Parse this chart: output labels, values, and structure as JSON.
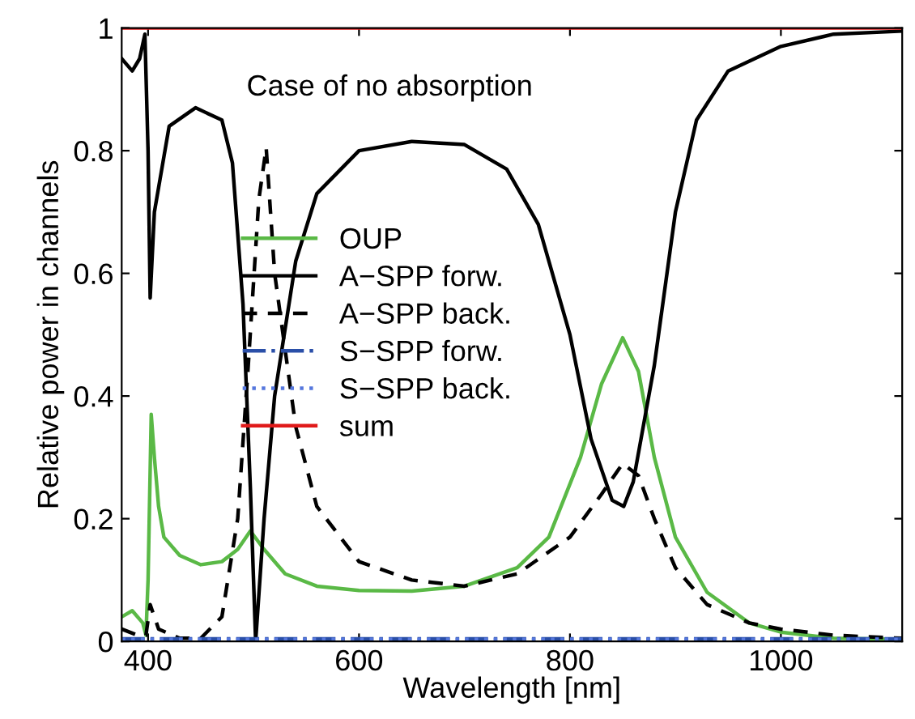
{
  "chart_data": {
    "type": "line",
    "xlabel": "Wavelength [nm]",
    "ylabel": "Relative power in channels",
    "annotations": [
      "Case of no absorption"
    ],
    "xlim": [
      375,
      1115
    ],
    "ylim": [
      0,
      1
    ],
    "xticks": [
      400,
      600,
      800,
      1000
    ],
    "yticks": [
      0,
      0.2,
      0.4,
      0.6,
      0.8,
      1
    ],
    "grid": false,
    "legend": "left",
    "marker": "none",
    "series": [
      {
        "name": "OUP",
        "color": "#5ab946",
        "line_style": "solid",
        "x": [
          375,
          385,
          395,
          398,
          400,
          403,
          406,
          410,
          415,
          430,
          450,
          470,
          485,
          497,
          510,
          530,
          560,
          600,
          650,
          700,
          750,
          780,
          810,
          830,
          850,
          865,
          880,
          900,
          930,
          970,
          1000,
          1050,
          1115
        ],
        "values": [
          0.04,
          0.05,
          0.03,
          0.01,
          0.1,
          0.37,
          0.3,
          0.22,
          0.17,
          0.14,
          0.125,
          0.13,
          0.15,
          0.18,
          0.15,
          0.11,
          0.09,
          0.083,
          0.082,
          0.09,
          0.12,
          0.17,
          0.3,
          0.42,
          0.495,
          0.44,
          0.3,
          0.17,
          0.08,
          0.03,
          0.015,
          0.005,
          0.003
        ]
      },
      {
        "name": "A−SPP forw.",
        "color": "#000000",
        "line_style": "solid",
        "x": [
          375,
          385,
          392,
          397,
          400,
          402,
          406,
          420,
          445,
          470,
          480,
          490,
          497,
          502,
          510,
          520,
          540,
          560,
          600,
          650,
          700,
          740,
          770,
          800,
          820,
          840,
          851,
          860,
          880,
          900,
          920,
          950,
          1000,
          1050,
          1115
        ],
        "values": [
          0.95,
          0.93,
          0.95,
          0.99,
          0.8,
          0.56,
          0.7,
          0.84,
          0.87,
          0.85,
          0.78,
          0.55,
          0.25,
          0.0,
          0.2,
          0.4,
          0.62,
          0.73,
          0.8,
          0.815,
          0.81,
          0.77,
          0.68,
          0.5,
          0.33,
          0.23,
          0.22,
          0.26,
          0.45,
          0.7,
          0.85,
          0.93,
          0.97,
          0.99,
          0.995
        ]
      },
      {
        "name": "A−SPP back.",
        "color": "#000000",
        "line_style": "dashed",
        "x": [
          375,
          390,
          398,
          402,
          410,
          430,
          450,
          470,
          485,
          495,
          505,
          512,
          520,
          540,
          560,
          600,
          650,
          700,
          750,
          800,
          830,
          850,
          865,
          880,
          900,
          930,
          970,
          1000,
          1050,
          1115
        ],
        "values": [
          0.02,
          0.01,
          0.01,
          0.06,
          0.02,
          0.005,
          0.005,
          0.04,
          0.2,
          0.45,
          0.72,
          0.805,
          0.6,
          0.35,
          0.22,
          0.13,
          0.1,
          0.09,
          0.11,
          0.17,
          0.24,
          0.29,
          0.27,
          0.2,
          0.12,
          0.06,
          0.03,
          0.02,
          0.01,
          0.005
        ]
      },
      {
        "name": "S−SPP forw.",
        "color": "#2a4fa8",
        "line_style": "dashdot",
        "x": [
          375,
          1115
        ],
        "values": [
          0.004,
          0.004
        ]
      },
      {
        "name": "S−SPP back.",
        "color": "#5577dd",
        "line_style": "dotted",
        "x": [
          375,
          1115
        ],
        "values": [
          0.003,
          0.003
        ]
      },
      {
        "name": "sum",
        "color": "#e01a1a",
        "line_style": "solid",
        "x": [
          375,
          1115
        ],
        "values": [
          1,
          1
        ]
      }
    ]
  }
}
